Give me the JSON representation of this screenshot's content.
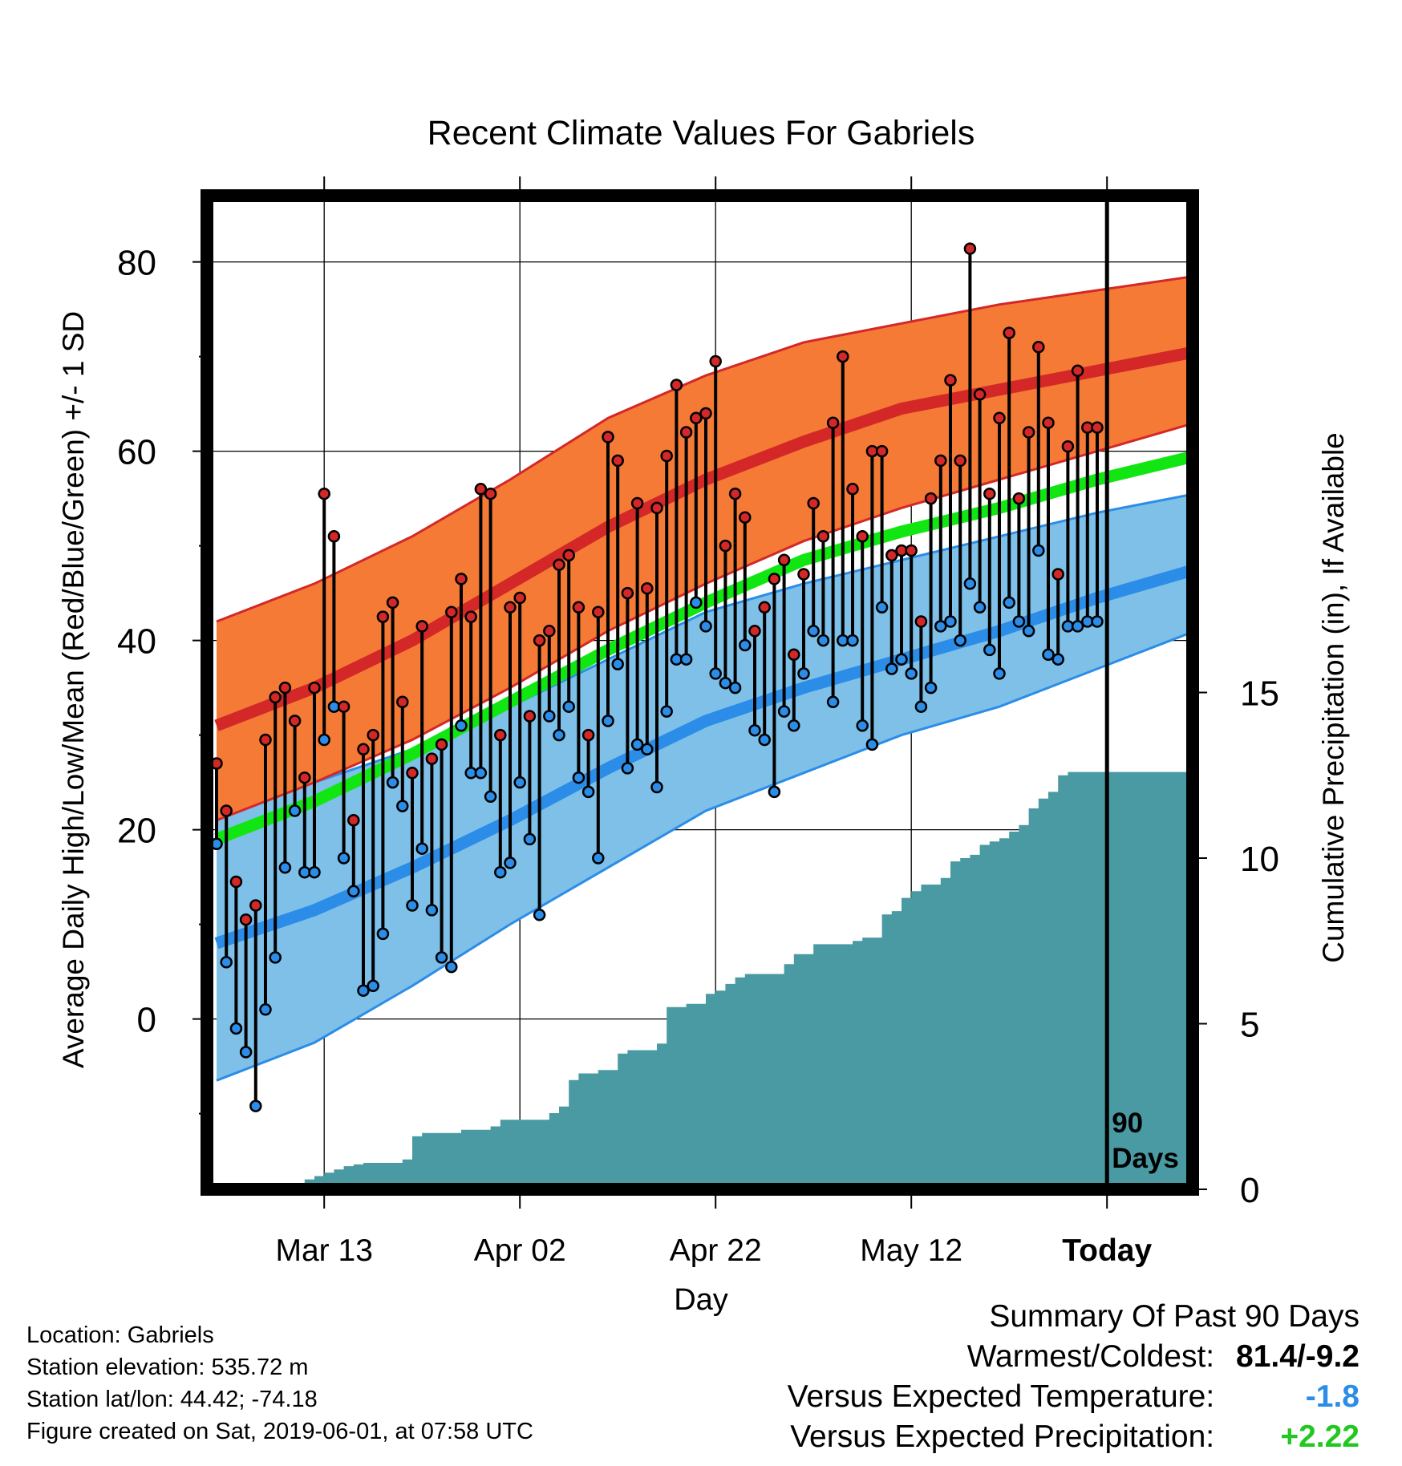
{
  "colors": {
    "high_band": "#f47a36",
    "high_mean": "#d42828",
    "low_band": "#7ec0e8",
    "low_mean": "#2b8de8",
    "mean": "#12e612",
    "precip": "#4a9aa3",
    "high_point": "#d42828",
    "low_point": "#2b8de8",
    "temp_anomaly": "#2b8de8",
    "precip_anomaly": "#22c722"
  },
  "chart_data": {
    "type": "area",
    "title": "Recent Climate Values For Gabriels",
    "xlabel": "Day",
    "ylabel": "Average Daily High/Low/Mean (Red/Blue/Green) +/- 1 SD",
    "y2label": "Cumulative Precipitation (in), If Available",
    "x_ticks": [
      "Mar 13",
      "Apr 02",
      "Apr 22",
      "May 12",
      "Today"
    ],
    "x_tick_days": [
      11,
      31,
      51,
      71,
      91
    ],
    "ylim": [
      -18,
      87
    ],
    "y_ticks": [
      0,
      20,
      40,
      60,
      80
    ],
    "y2lim": [
      0,
      30
    ],
    "y2_ticks": [
      0,
      5,
      10,
      15
    ],
    "xlim": [
      0,
      100
    ],
    "grid": true,
    "today_marker": {
      "day": 91,
      "label_line1": "90",
      "label_line2": "Days"
    },
    "normal_high": {
      "day": [
        0,
        10,
        20,
        30,
        40,
        50,
        60,
        70,
        80,
        90,
        100
      ],
      "mean": [
        31,
        35,
        40,
        46,
        52,
        57,
        61,
        64.5,
        66.5,
        68.5,
        70.5
      ],
      "upper": [
        42,
        46,
        51,
        57,
        63.5,
        68,
        71.5,
        73.5,
        75.5,
        77,
        78.5
      ],
      "lower": [
        21,
        25,
        29.5,
        35,
        41,
        46,
        50.5,
        54,
        57,
        60,
        63
      ]
    },
    "normal_mean": {
      "day": [
        0,
        10,
        20,
        30,
        40,
        50,
        60,
        70,
        80,
        90,
        100
      ],
      "values": [
        19,
        23,
        28,
        33.5,
        39,
        44,
        48.5,
        51.5,
        54,
        57,
        59.5
      ]
    },
    "normal_low": {
      "day": [
        0,
        10,
        20,
        30,
        40,
        50,
        60,
        70,
        80,
        90,
        100
      ],
      "mean": [
        8,
        11.5,
        16,
        21,
        26.5,
        31.5,
        35,
        38,
        41,
        44.5,
        47.5
      ],
      "upper": [
        22,
        25,
        28.5,
        33,
        38,
        43,
        46,
        48.5,
        51,
        53.5,
        55.5
      ],
      "lower": [
        -6.5,
        -2.5,
        3.5,
        10,
        16,
        22,
        26,
        30,
        33,
        37,
        41
      ]
    },
    "series": [
      {
        "name": "High",
        "day": [
          0,
          1,
          2,
          3,
          4,
          5,
          6,
          7,
          8,
          9,
          10,
          11,
          12,
          13,
          14,
          15,
          16,
          17,
          18,
          19,
          20,
          21,
          22,
          23,
          24,
          25,
          26,
          27,
          28,
          29,
          30,
          31,
          32,
          33,
          34,
          35,
          36,
          37,
          38,
          39,
          40,
          41,
          42,
          43,
          44,
          45,
          46,
          47,
          48,
          49,
          50,
          51,
          52,
          53,
          54,
          55,
          56,
          57,
          58,
          59,
          60,
          61,
          62,
          63,
          64,
          65,
          66,
          67,
          68,
          69,
          70,
          71,
          72,
          73,
          74,
          75,
          76,
          77,
          78,
          79,
          80,
          81,
          82,
          83,
          84,
          85,
          86,
          87,
          88,
          89,
          90
        ],
        "values": [
          27,
          22,
          14.5,
          10.5,
          12,
          29.5,
          34,
          35,
          31.5,
          25.5,
          35,
          55.5,
          51,
          33,
          21,
          28.5,
          30,
          42.5,
          44,
          33.5,
          26,
          41.5,
          27.5,
          29,
          43,
          46.5,
          42.5,
          56,
          55.5,
          30,
          43.5,
          44.5,
          32,
          40,
          41,
          48,
          49,
          43.5,
          30,
          43,
          61.5,
          59,
          45,
          54.5,
          45.5,
          54,
          59.5,
          67,
          62,
          63.5,
          64,
          69.5,
          50,
          55.5,
          53,
          41,
          43.5,
          46.5,
          48.5,
          38.5,
          47,
          54.5,
          51,
          63,
          70,
          56,
          51,
          60,
          60,
          49,
          49.5,
          49.5,
          42,
          55,
          59,
          67.5,
          59,
          81.4,
          66,
          55.5,
          63.5,
          72.5,
          55,
          62,
          71,
          63,
          47,
          60.5,
          68.5,
          62.5,
          62.5
        ],
        "low_values_note": ""
      },
      {
        "name": "Low",
        "day": [
          0,
          1,
          2,
          3,
          4,
          5,
          6,
          7,
          8,
          9,
          10,
          11,
          12,
          13,
          14,
          15,
          16,
          17,
          18,
          19,
          20,
          21,
          22,
          23,
          24,
          25,
          26,
          27,
          28,
          29,
          30,
          31,
          32,
          33,
          34,
          35,
          36,
          37,
          38,
          39,
          40,
          41,
          42,
          43,
          44,
          45,
          46,
          47,
          48,
          49,
          50,
          51,
          52,
          53,
          54,
          55,
          56,
          57,
          58,
          59,
          60,
          61,
          62,
          63,
          64,
          65,
          66,
          67,
          68,
          69,
          70,
          71,
          72,
          73,
          74,
          75,
          76,
          77,
          78,
          79,
          80,
          81,
          82,
          83,
          84,
          85,
          86,
          87,
          88,
          89,
          90
        ],
        "values": [
          18.5,
          6,
          -1,
          -3.5,
          -9.2,
          1,
          6.5,
          16,
          22,
          15.5,
          15.5,
          29.5,
          33,
          17,
          13.5,
          3,
          3.5,
          9,
          25,
          22.5,
          12,
          18,
          11.5,
          6.5,
          5.5,
          31,
          26,
          26,
          23.5,
          15.5,
          16.5,
          25,
          19,
          11,
          32,
          30,
          33,
          25.5,
          24,
          17,
          31.5,
          37.5,
          26.5,
          29,
          28.5,
          24.5,
          32.5,
          38,
          38,
          44,
          41.5,
          36.5,
          35.5,
          35,
          39.5,
          30.5,
          29.5,
          24,
          32.5,
          31,
          36.5,
          41,
          40,
          33.5,
          40,
          40,
          31,
          29,
          43.5,
          37,
          38,
          36.5,
          33,
          35,
          41.5,
          42,
          40,
          46,
          43.5,
          39,
          36.5,
          44,
          42,
          41,
          49.5,
          38.5,
          38,
          41.5,
          41.5,
          42,
          42
        ]
      }
    ],
    "precipitation": {
      "day": [
        0,
        7,
        8,
        9,
        10,
        11,
        12,
        13,
        14,
        15,
        16,
        17,
        18,
        19,
        20,
        21,
        25,
        28,
        29,
        30,
        34,
        35,
        36,
        37,
        38,
        39,
        41,
        42,
        43,
        44,
        45,
        46,
        48,
        49,
        50,
        51,
        52,
        53,
        54,
        55,
        56,
        57,
        58,
        59,
        61,
        62,
        63,
        64,
        65,
        66,
        67,
        68,
        69,
        70,
        71,
        72,
        73,
        74,
        75,
        76,
        77,
        78,
        79,
        80,
        81,
        82,
        83,
        84,
        85,
        86,
        87,
        88,
        89,
        90,
        91,
        100
      ],
      "values": [
        0,
        0,
        0.1,
        0.3,
        0.4,
        0.5,
        0.6,
        0.7,
        0.75,
        0.8,
        0.8,
        0.8,
        0.8,
        0.9,
        1.6,
        1.7,
        1.8,
        1.9,
        2.1,
        2.1,
        2.3,
        2.5,
        3.3,
        3.5,
        3.5,
        3.6,
        4.1,
        4.2,
        4.2,
        4.2,
        4.4,
        5.5,
        5.6,
        5.6,
        5.9,
        6.0,
        6.2,
        6.4,
        6.5,
        6.5,
        6.5,
        6.5,
        6.8,
        7.1,
        7.4,
        7.4,
        7.4,
        7.4,
        7.5,
        7.6,
        7.6,
        8.3,
        8.4,
        8.8,
        9.0,
        9.2,
        9.2,
        9.4,
        9.9,
        10.0,
        10.1,
        10.4,
        10.5,
        10.6,
        10.8,
        11.0,
        11.5,
        11.8,
        12.0,
        12.5,
        12.6,
        12.6,
        12.6,
        12.6,
        12.6,
        12.6
      ]
    }
  },
  "info": {
    "location": "Location: Gabriels",
    "elevation": "Station elevation: 535.72 m",
    "latlon": "Station lat/lon: 44.42; -74.18",
    "created": "Figure created on Sat, 2019-06-01, at 07:58 UTC"
  },
  "summary": {
    "title": "Summary Of Past 90 Days",
    "warmest_coldest_label": "Warmest/Coldest:",
    "warmest_coldest_value": "81.4/-9.2",
    "temp_label": "Versus Expected Temperature:",
    "temp_value": "-1.8",
    "precip_label": "Versus Expected Precipitation:",
    "precip_value": "+2.22"
  }
}
